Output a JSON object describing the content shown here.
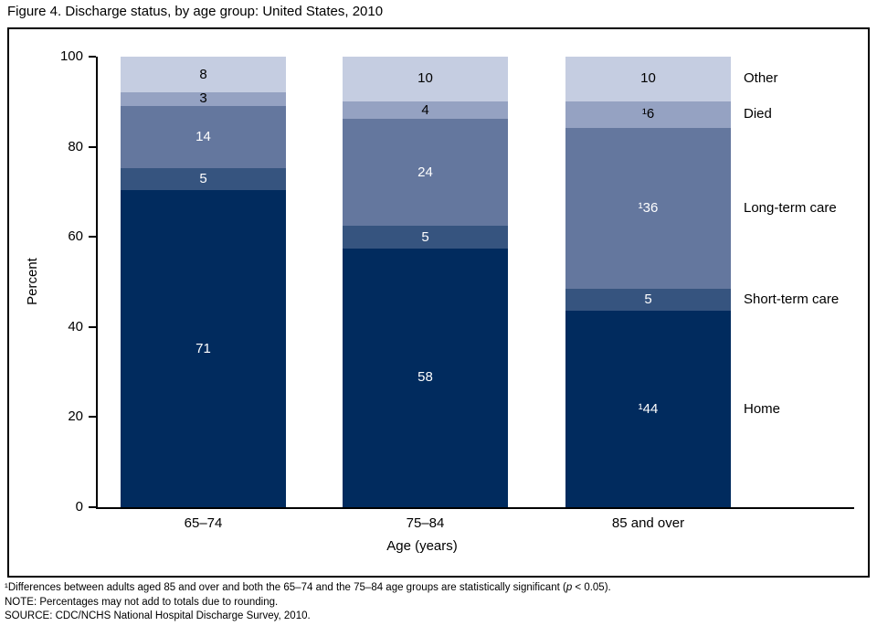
{
  "chart_data": {
    "type": "bar",
    "stacked": true,
    "title": "Figure 4. Discharge status, by age group: United States, 2010",
    "categories": [
      "65–74",
      "75–84",
      "85 and over"
    ],
    "series": [
      {
        "name": "Home",
        "color": "#012b5e",
        "values": [
          71,
          58,
          44
        ],
        "labels": [
          "71",
          "58",
          "¹44"
        ],
        "label_color": "#ffffff"
      },
      {
        "name": "Short-term care",
        "color": "#36547f",
        "values": [
          5,
          5,
          5
        ],
        "labels": [
          "5",
          "5",
          "5"
        ],
        "label_color": "#ffffff"
      },
      {
        "name": "Long-term care",
        "color": "#64779e",
        "values": [
          14,
          24,
          36
        ],
        "labels": [
          "14",
          "24",
          "¹36"
        ],
        "label_color": "#ffffff"
      },
      {
        "name": "Died",
        "color": "#95a2c2",
        "values": [
          3,
          4,
          6
        ],
        "labels": [
          "3",
          "4",
          "¹6"
        ],
        "label_color": "#000000"
      },
      {
        "name": "Other",
        "color": "#c5cde1",
        "values": [
          8,
          10,
          10
        ],
        "labels": [
          "8",
          "10",
          "10"
        ],
        "label_color": "#000000"
      }
    ],
    "legend_entries": [
      "Other",
      "Died",
      "Long-term care",
      "Short-term care",
      "Home"
    ],
    "legend_position": "right",
    "xlabel": "Age (years)",
    "ylabel": "Percent",
    "ylim": [
      0,
      100
    ],
    "yticks": [
      0,
      20,
      40,
      60,
      80,
      100
    ],
    "grid": false
  },
  "footnotes": {
    "line1_parts": [
      "¹Differences between adults aged 85 and over and both the 65–74 and the 75–84 age groups are statistically significant (",
      "p",
      " < 0.05)."
    ],
    "note": "NOTE: Percentages may not add to totals due to rounding.",
    "source": "SOURCE: CDC/NCHS National Hospital Discharge Survey, 2010."
  }
}
